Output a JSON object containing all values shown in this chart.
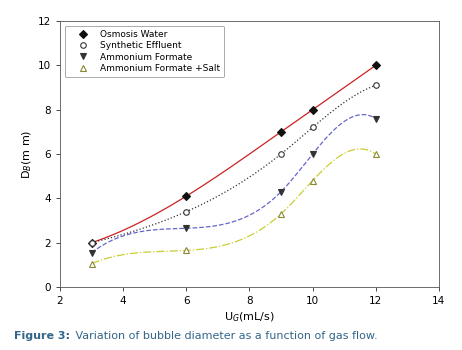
{
  "osmosis_water": {
    "x": [
      3,
      6,
      9,
      10,
      12
    ],
    "y": [
      2.0,
      4.1,
      7.0,
      8.0,
      10.0
    ],
    "color": "#cc2222",
    "linestyle": "-",
    "marker": "D",
    "marker_fill": "#111111",
    "marker_edge": "#111111",
    "label": "Osmosis Water",
    "linewidth": 0.9,
    "markersize": 4
  },
  "synthetic_effluent": {
    "x": [
      3,
      6,
      9,
      10,
      12
    ],
    "y": [
      2.0,
      3.4,
      6.0,
      7.2,
      9.1
    ],
    "color": "#333333",
    "linestyle": ":",
    "marker": "o",
    "marker_fill": "white",
    "marker_edge": "#333333",
    "label": "Synthetic Effluent",
    "linewidth": 0.9,
    "markersize": 4
  },
  "ammonium_formate": {
    "x": [
      3,
      6,
      9,
      10,
      12
    ],
    "y": [
      1.55,
      2.65,
      4.3,
      6.0,
      7.6
    ],
    "color": "#6666cc",
    "linestyle": "--",
    "marker": "v",
    "marker_fill": "#333333",
    "marker_edge": "#333333",
    "label": "Ammonium Formate",
    "linewidth": 0.9,
    "markersize": 4
  },
  "ammonium_formate_salt": {
    "x": [
      3,
      6,
      9,
      10,
      12
    ],
    "y": [
      1.05,
      1.65,
      3.3,
      4.8,
      6.0
    ],
    "color": "#cccc33",
    "linestyle": "-.",
    "marker": "^",
    "marker_fill": "white",
    "marker_edge": "#888833",
    "label": "Ammonium Formate +Salt",
    "linewidth": 0.9,
    "markersize": 4
  },
  "xlabel": "U$_G$(mL/s)",
  "ylabel": "D$_B$(m m)",
  "xlim": [
    2,
    14
  ],
  "ylim": [
    0,
    12
  ],
  "xticks": [
    2,
    4,
    6,
    8,
    10,
    12,
    14
  ],
  "yticks": [
    0,
    2,
    4,
    6,
    8,
    10,
    12
  ],
  "caption_bold": "Figure 3:",
  "caption_normal": " Variation of bubble diameter as a function of gas flow.",
  "caption_color": "#336688"
}
